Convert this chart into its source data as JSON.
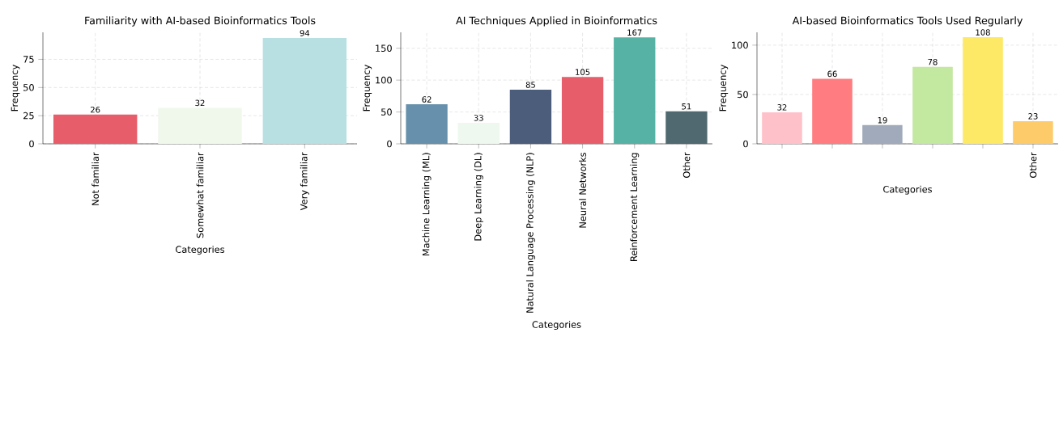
{
  "chart_data": [
    {
      "type": "bar",
      "title": "Familiarity with AI-based Bioinformatics Tools",
      "xlabel": "Categories",
      "ylabel": "Frequency",
      "categories": [
        "Not familiar",
        "Somewhat familiar",
        "Very familiar"
      ],
      "values": [
        26,
        32,
        94
      ],
      "colors": [
        "#e85d6a",
        "#f0f8ec",
        "#b8e0e2"
      ],
      "ylim": [
        0,
        99
      ],
      "yticks": [
        0,
        25,
        50,
        75
      ],
      "grid": true,
      "data_labels": true
    },
    {
      "type": "bar",
      "title": "AI Techniques Applied in Bioinformatics",
      "xlabel": "Categories",
      "ylabel": "Frequency",
      "categories": [
        "Machine Learning (ML)",
        "Deep Learning (DL)",
        "Natural Language Processing (NLP)",
        "Neural Networks",
        "Reinforcement Learning",
        "Other"
      ],
      "values": [
        62,
        33,
        85,
        105,
        167,
        51
      ],
      "colors": [
        "#6690ab",
        "#eef8ee",
        "#4b5d7a",
        "#e85d6a",
        "#55b2a5",
        "#506870"
      ],
      "ylim": [
        0,
        175
      ],
      "yticks": [
        0,
        50,
        100,
        150
      ],
      "grid": true,
      "data_labels": true
    },
    {
      "type": "bar",
      "title": "AI-based Bioinformatics Tools Used Regularly",
      "xlabel": "Categories",
      "ylabel": "Frequency",
      "categories": [
        null,
        null,
        null,
        null,
        null,
        "Other"
      ],
      "values": [
        32,
        66,
        19,
        78,
        108,
        23
      ],
      "colors": [
        "#ffc1c9",
        "#ff7c80",
        "#a0aabb",
        "#c3e8a0",
        "#fde966",
        "#fdcb6a"
      ],
      "ylim": [
        0,
        113
      ],
      "yticks": [
        0,
        50,
        100
      ],
      "grid": true,
      "data_labels": true
    }
  ]
}
